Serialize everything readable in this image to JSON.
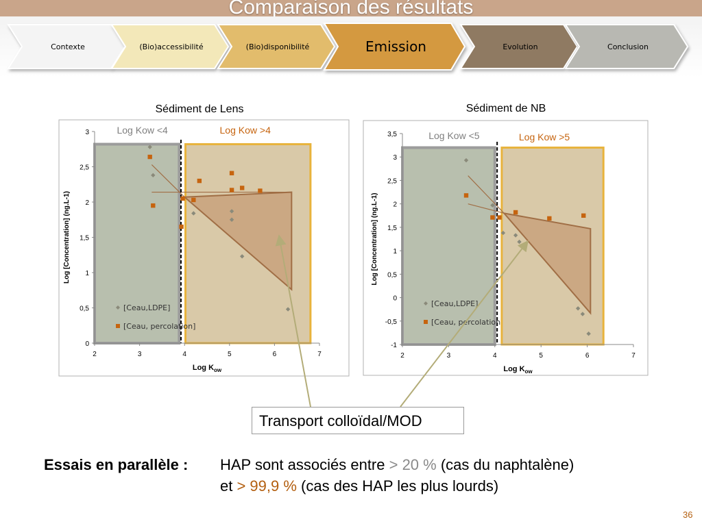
{
  "slide": {
    "title": "Comparaison des résultats",
    "page_number": "36"
  },
  "nav": {
    "active_index": 3,
    "tabs": [
      {
        "label": "Contexte",
        "fill": "#f4f4f4",
        "text_color": "#000000"
      },
      {
        "label": "(Bio)accessibilité",
        "fill": "#f3e8b9",
        "text_color": "#000000"
      },
      {
        "label": "(Bio)disponibilité",
        "fill": "#e2bc6c",
        "text_color": "#000000"
      },
      {
        "label": "Emission",
        "fill": "#d49940",
        "text_color": "#000000"
      },
      {
        "label": "Evolution",
        "fill": "#8f7a62",
        "text_color": "#000000"
      },
      {
        "label": "Conclusion",
        "fill": "#b8b8b2",
        "text_color": "#000000"
      }
    ]
  },
  "chart_data": [
    {
      "type": "scatter",
      "title": "Sédiment de Lens",
      "xlabel_main": "Log K",
      "xlabel_sub": "ow",
      "ylabel": "Log [Concentration] (ng.L-1)",
      "xlim": [
        2,
        7
      ],
      "ylim": [
        0,
        3
      ],
      "xticks": [
        "2",
        "3",
        "4",
        "5",
        "6",
        "7"
      ],
      "yticks": [
        "0",
        "0,5",
        "1",
        "1,5",
        "2",
        "2,5",
        "3"
      ],
      "divider_x": 3.92,
      "region_left": {
        "label": "Log Kow <4",
        "x": [
          2,
          3.88
        ],
        "y": [
          0,
          2.82
        ]
      },
      "region_right": {
        "label": "Log Kow >4",
        "x": [
          4.02,
          6.8
        ],
        "y": [
          0,
          2.82
        ]
      },
      "series": [
        {
          "name": "[Ceau,LDPE]",
          "marker": "diamond",
          "color": "#8a8a7a",
          "x": [
            3.23,
            3.3,
            4.2,
            5.05,
            5.05,
            5.28,
            6.3
          ],
          "y": [
            2.78,
            2.38,
            1.84,
            1.87,
            1.75,
            1.23,
            0.48
          ]
        },
        {
          "name": "[Ceau, percolation]",
          "marker": "square",
          "color": "#c6640f",
          "x": [
            3.23,
            3.3,
            3.93,
            3.96,
            4.2,
            4.33,
            5.05,
            5.05,
            5.28,
            5.68
          ],
          "y": [
            2.64,
            1.95,
            1.65,
            2.05,
            2.03,
            2.3,
            2.41,
            2.17,
            2.2,
            2.16
          ]
        }
      ],
      "trend_lines": [
        {
          "x": [
            3.27,
            4.0
          ],
          "y": [
            2.53,
            2.07
          ]
        },
        {
          "x": [
            3.27,
            6.35
          ],
          "y": [
            2.14,
            2.14
          ]
        }
      ],
      "triangle": {
        "x": [
          4.0,
          6.38,
          6.38
        ],
        "y": [
          2.07,
          2.14,
          0.76
        ]
      }
    },
    {
      "type": "scatter",
      "title": "Sédiment de NB",
      "xlabel_main": "Log K",
      "xlabel_sub": "ow",
      "ylabel": "Log [Concentration] (ng.L-1)",
      "xlim": [
        2,
        7
      ],
      "ylim": [
        -1,
        3.5
      ],
      "xticks": [
        "2",
        "3",
        "4",
        "5",
        "6",
        "7"
      ],
      "yticks": [
        "-1",
        "-0,5",
        "0",
        "0,5",
        "1",
        "1,5",
        "2",
        "2,5",
        "3",
        "3,5"
      ],
      "divider_x": 4.05,
      "region_left": {
        "label": "Log Kow <5",
        "x": [
          2,
          4.0
        ],
        "y": [
          -1,
          3.2
        ]
      },
      "region_right": {
        "label": "Log Kow >5",
        "x": [
          4.15,
          6.35
        ],
        "y": [
          -1,
          3.2
        ]
      },
      "series": [
        {
          "name": "[Ceau,LDPE]",
          "marker": "diamond",
          "color": "#8a8a7a",
          "x": [
            3.38,
            3.95,
            4.18,
            4.45,
            4.53,
            5.8,
            5.9,
            6.03
          ],
          "y": [
            2.93,
            1.97,
            1.38,
            1.33,
            1.19,
            -0.23,
            -0.35,
            -0.77
          ]
        },
        {
          "name": "[Ceau, percolation",
          "marker": "square",
          "color": "#c6640f",
          "x": [
            3.38,
            3.95,
            4.1,
            4.45,
            5.18,
            5.92
          ],
          "y": [
            2.18,
            1.71,
            1.71,
            1.82,
            1.69,
            1.75
          ]
        }
      ],
      "trend_lines": [
        {
          "x": [
            3.42,
            4.2
          ],
          "y": [
            2.6,
            1.8
          ]
        },
        {
          "x": [
            3.42,
            4.2
          ],
          "y": [
            2.0,
            1.8
          ]
        }
      ],
      "triangle": {
        "x": [
          4.2,
          6.07,
          6.07
        ],
        "y": [
          1.8,
          1.47,
          -0.33
        ]
      }
    }
  ],
  "annotation": {
    "callout_text": "Transport colloïdal/MOD"
  },
  "summary": {
    "label": "Essais en parallèle :",
    "line1_a": "HAP sont associés entre ",
    "line1_pct": "> 20 %",
    "line1_b": " (cas du naphtalène)",
    "line2_a": "et ",
    "line2_pct": "> 99,9 %",
    "line2_b": " (cas des HAP les plus lourds)"
  },
  "colors": {
    "region_left_fill": "#b8bfae",
    "region_left_border": "#9c9c9c",
    "region_right_fill": "#d9c9a8",
    "region_right_border": "#e8b33c",
    "triangle_fill": "#c7a079",
    "triangle_stroke": "#a06e45",
    "trend_stroke": "#a06e45",
    "arrow_color": "#b3ac78",
    "accent_orange": "#b35f10"
  }
}
